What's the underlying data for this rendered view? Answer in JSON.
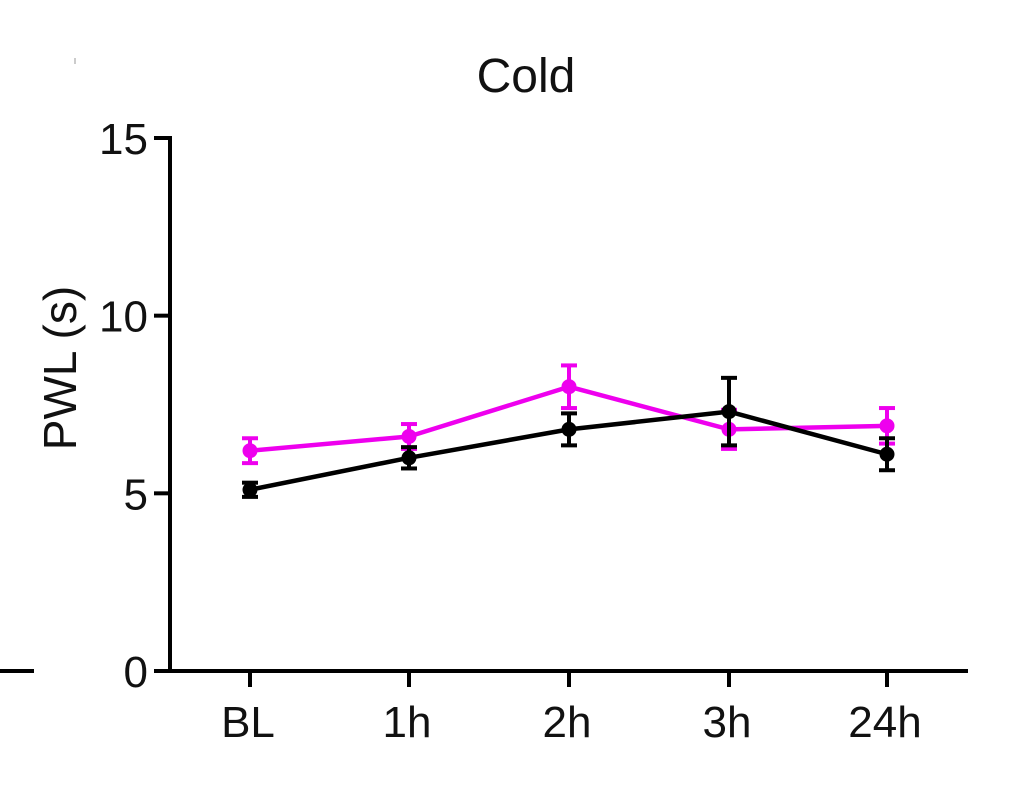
{
  "chart_data": {
    "type": "line",
    "title": "Cold",
    "xlabel": "",
    "ylabel": "PWL (s)",
    "categories": [
      "BL",
      "1h",
      "2h",
      "3h",
      "24h"
    ],
    "ylim": [
      0,
      15
    ],
    "yticks": [
      0,
      5,
      10,
      15
    ],
    "grid": false,
    "series": [
      {
        "name": "magenta series",
        "color": "#ee00ee",
        "values": [
          6.2,
          6.6,
          8.0,
          6.8,
          6.9
        ],
        "errors": [
          0.35,
          0.35,
          0.6,
          0.55,
          0.5
        ]
      },
      {
        "name": "black series",
        "color": "#000000",
        "values": [
          5.1,
          6.0,
          6.8,
          7.3,
          6.1
        ],
        "errors": [
          0.2,
          0.3,
          0.45,
          0.95,
          0.45
        ]
      }
    ]
  }
}
